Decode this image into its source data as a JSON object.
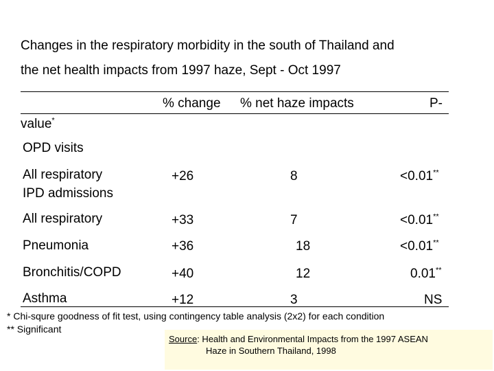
{
  "title": {
    "line1": "Changes in the respiratory morbidity in the south of Thailand and",
    "line2": "the net health impacts from 1997 haze, Sept - Oct 1997"
  },
  "header": {
    "col_change": "% change",
    "col_net": "% net haze impacts",
    "col_p_part1": "P-",
    "col_p_part2": "value",
    "col_p_mark": "*"
  },
  "rows": [
    {
      "label": "OPD visits",
      "change": "",
      "net": "",
      "p": "",
      "mark": ""
    },
    {
      "label": "All respiratory",
      "change": "+26",
      "net": "8",
      "p": "<0.01",
      "mark": "**"
    },
    {
      "label": "IPD admissions",
      "change": "",
      "net": "",
      "p": "",
      "mark": ""
    },
    {
      "label": "All respiratory",
      "change": "+33",
      "net": "7",
      "p": "<0.01",
      "mark": "**"
    },
    {
      "label": "Pneumonia",
      "change": "+36",
      "net": "18",
      "p": "<0.01",
      "mark": "**"
    },
    {
      "label": "Bronchitis/COPD",
      "change": "+40",
      "net": "12",
      "p": "0.01",
      "mark": "**"
    },
    {
      "label": "Asthma",
      "change": "+12",
      "net": "3",
      "p": "NS",
      "mark": ""
    }
  ],
  "footnotes": {
    "note1": "* Chi-squre goodness of fit test, using contingency table analysis (2x2) for each condition",
    "note2": "** Significant"
  },
  "source": {
    "label": "Source",
    "text1": ": Health and Environmental Impacts from the 1997 ASEAN",
    "text2": "Haze in Southern Thailand, 1998"
  }
}
